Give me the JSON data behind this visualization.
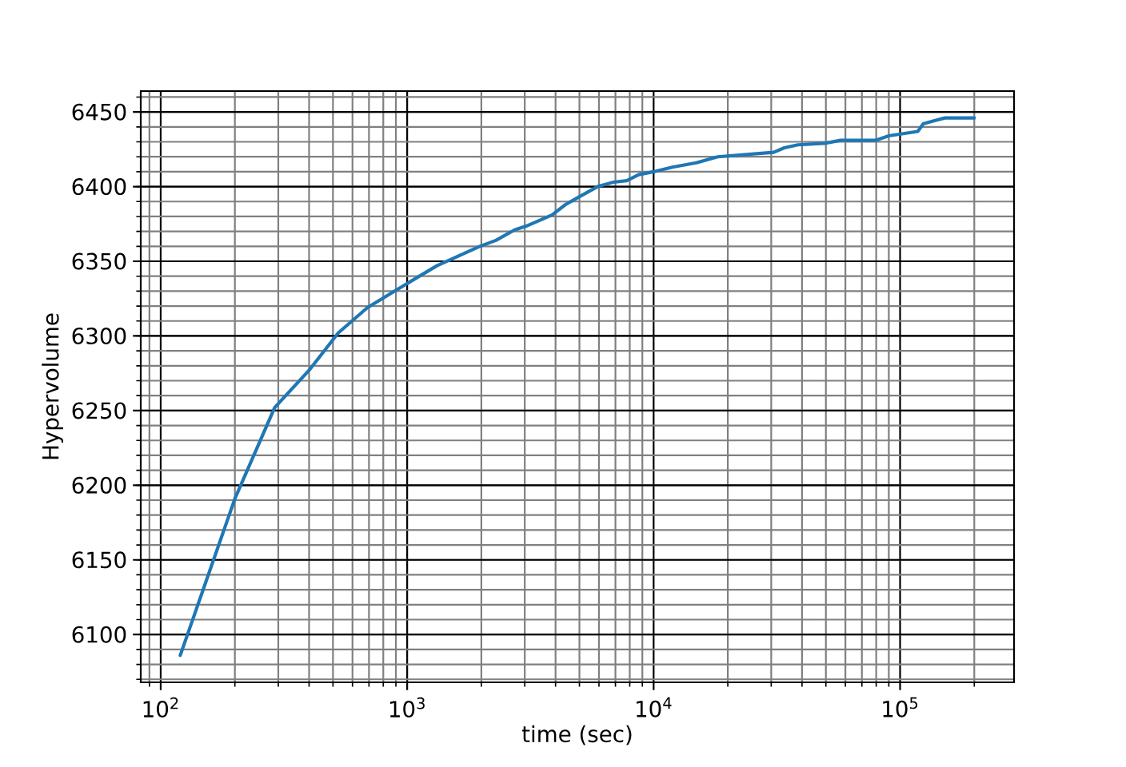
{
  "chart_data": {
    "type": "line",
    "xlabel": "time (sec)",
    "ylabel": "Hypervolume",
    "x": [
      120,
      200,
      290,
      400,
      525,
      690,
      930,
      1320,
      1970,
      2290,
      2730,
      3090,
      3870,
      4390,
      4970,
      5920,
      6870,
      7780,
      8700,
      10000,
      11900,
      14900,
      18200,
      30700,
      33900,
      38500,
      49400,
      57400,
      79400,
      90000,
      118000,
      124000,
      137000,
      152000,
      200000
    ],
    "values": [
      6086,
      6191,
      6252,
      6277,
      6302,
      6319,
      6332,
      6347,
      6360,
      6364,
      6371,
      6374,
      6381,
      6388,
      6393,
      6400,
      6403,
      6404,
      6408,
      6410,
      6413,
      6416,
      6420,
      6423,
      6426,
      6428,
      6429,
      6431,
      6431,
      6434,
      6437,
      6442,
      6444,
      6446,
      6446
    ],
    "color": "#1f77b4",
    "marker": "none",
    "log": "x",
    "grid": true,
    "xlim": [
      83,
      290000
    ],
    "ylim": [
      6068,
      6464
    ],
    "xticks": [
      {
        "value": 100,
        "label": "10$^{2}$"
      },
      {
        "value": 1000,
        "label": "10$^{3}$"
      },
      {
        "value": 10000,
        "label": "10$^{4}$"
      },
      {
        "value": 100000,
        "label": "10$^{5}$"
      }
    ],
    "yticks": [
      6100,
      6150,
      6200,
      6250,
      6300,
      6350,
      6400,
      6450
    ]
  }
}
